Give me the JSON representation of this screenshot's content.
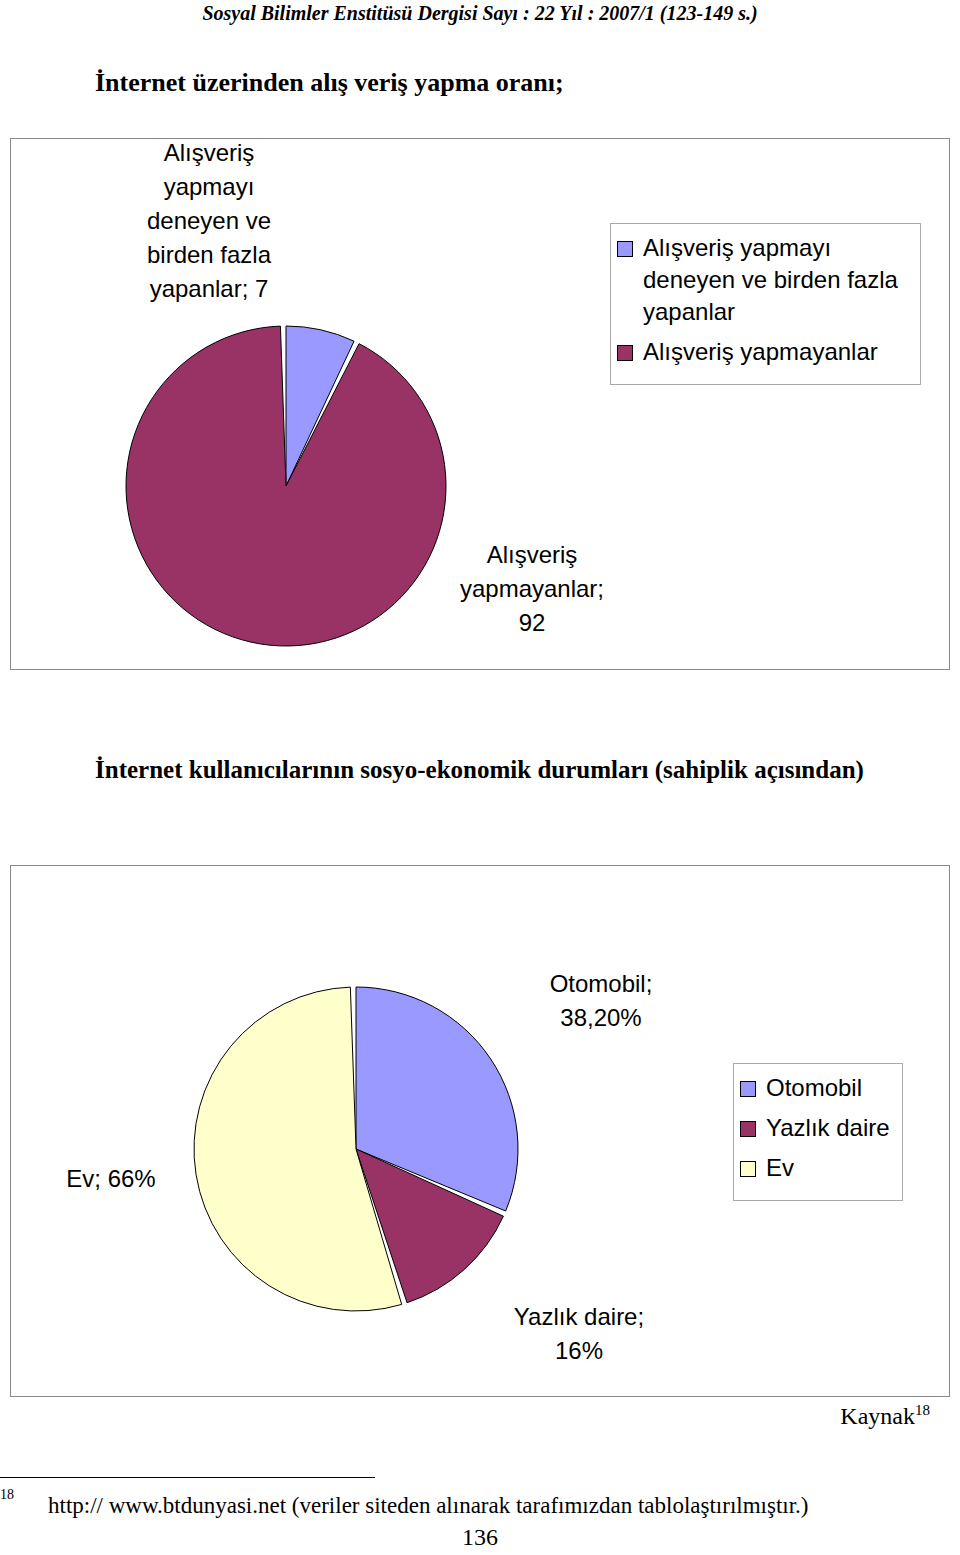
{
  "header": "Sosyal Bilimler Enstitüsü Dergisi Sayı : 22 Yıl : 2007/1 (123-149 s.)",
  "heading": "İnternet üzerinden alış veriş yapma oranı;",
  "paragraph": "İnternet kullanıcılarının sosyo-ekonomik durumları (sahiplik açısından)",
  "source": {
    "text": "Kaynak",
    "note": "18"
  },
  "footnote": {
    "mark": "18",
    "text": "http:// www.btdunyasi.net (veriler siteden alınarak tarafımızdan tablolaştırılmıştır.)"
  },
  "page_number": 136,
  "chart_data": [
    {
      "type": "pie",
      "categories": [
        "Alışveriş yapmayı deneyen ve birden fazla yapanlar",
        "Alışveriş yapmayanlar"
      ],
      "values": [
        7,
        92
      ],
      "value_labels": [
        "Alışveriş yapmayı deneyen ve birden fazla yapanlar; 7",
        "Alışveriş yapmayanlar; 92"
      ],
      "colors": [
        "#9999ff",
        "#993366"
      ],
      "legend": "right"
    },
    {
      "type": "pie",
      "categories": [
        "Otomobil",
        "Yazlık daire",
        "Ev"
      ],
      "values": [
        38.2,
        16,
        66
      ],
      "value_labels": [
        "Otomobil; 38,20%",
        "Yazlık daire; 16%",
        "Ev; 66%"
      ],
      "colors": [
        "#9999ff",
        "#993366",
        "#ffffcc"
      ],
      "legend": "right"
    }
  ]
}
